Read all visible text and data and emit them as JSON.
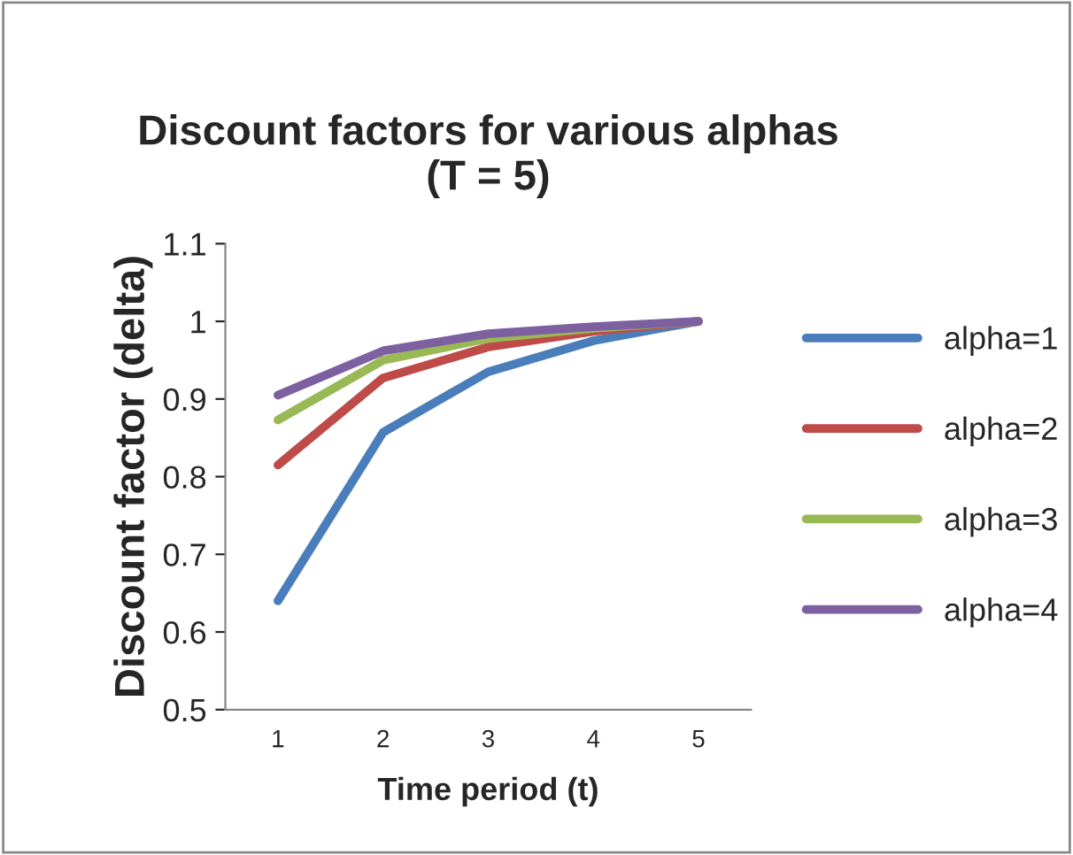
{
  "chart_data": {
    "type": "line",
    "title": "Discount factors for various alphas\n(T = 5)",
    "xlabel": "Time period (t)",
    "ylabel": "Discount factor (delta)",
    "categories": [
      "1",
      "2",
      "3",
      "4",
      "5"
    ],
    "series": [
      {
        "name": "alpha=1",
        "color": "#4a7ebb",
        "values": [
          0.64,
          0.857,
          0.935,
          0.975,
          1
        ]
      },
      {
        "name": "alpha=2",
        "color": "#be4b48",
        "values": [
          0.815,
          0.927,
          0.967,
          0.987,
          1
        ]
      },
      {
        "name": "alpha=3",
        "color": "#98b954",
        "values": [
          0.873,
          0.95,
          0.978,
          0.991,
          1
        ]
      },
      {
        "name": "alpha=4",
        "color": "#7d60a0",
        "values": [
          0.905,
          0.962,
          0.984,
          0.993,
          1
        ]
      }
    ],
    "ylim": [
      0.5,
      1.1
    ],
    "yticks": [
      0.5,
      0.6,
      0.7,
      0.8,
      0.9,
      1,
      1.1
    ],
    "grid": false,
    "legend": "right",
    "marker": "none",
    "line_style": "solid"
  }
}
